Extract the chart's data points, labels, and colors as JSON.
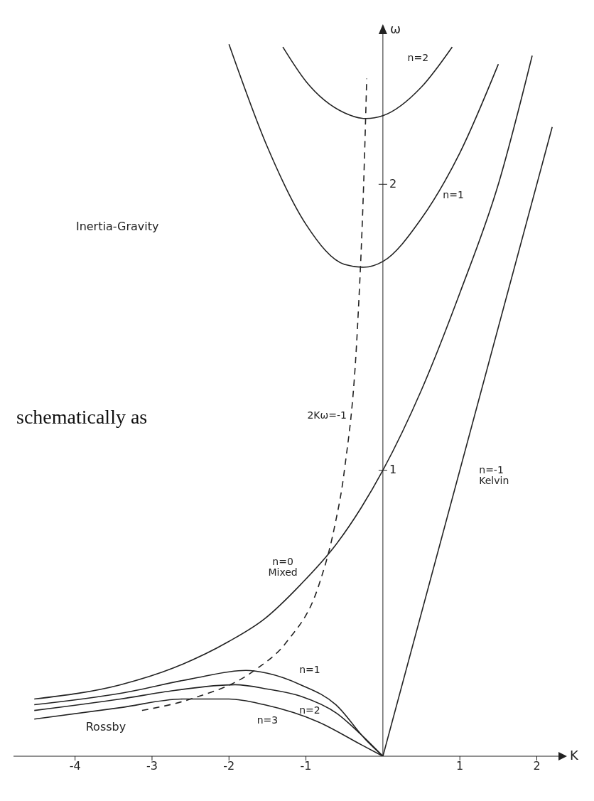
{
  "chart_data": {
    "type": "line",
    "xlabel": "K",
    "ylabel": "ω",
    "xlim": [
      -4.8,
      2.3
    ],
    "xticks": [
      -4,
      -3,
      -2,
      -1,
      1,
      2
    ],
    "ylim": [
      0,
      2.55
    ],
    "yticks": [
      1,
      2
    ],
    "grid": false,
    "marker": "none",
    "line_style": "solid",
    "series": [
      {
        "name": "n=2",
        "color": "#222222",
        "x": [
          -1.3,
          -1,
          -0.5,
          -0.22,
          0,
          0.5,
          0.9
        ],
        "values": [
          2.48,
          2.36,
          2.25,
          2.23,
          2.24,
          2.34,
          2.48
        ]
      },
      {
        "name": "n=1",
        "color": "#222222",
        "x": [
          -2,
          -1.5,
          -1,
          -0.5,
          -0.25,
          0,
          0.5,
          1,
          1.5
        ],
        "values": [
          2.49,
          2.13,
          1.86,
          1.72,
          1.71,
          1.73,
          1.88,
          2.11,
          2.42
        ]
      },
      {
        "name": "n=0 Mixed",
        "color": "#222222",
        "x": [
          -4.53,
          -3.41,
          -2.71,
          -2.01,
          -1.54,
          -1.07,
          -0.61,
          -0.28,
          0,
          0.5,
          1,
          1.5,
          1.94
        ],
        "values": [
          0.2,
          0.25,
          0.31,
          0.4,
          0.48,
          0.6,
          0.74,
          0.87,
          1,
          1.28,
          1.62,
          2,
          2.45
        ]
      },
      {
        "name": "n=-1 Kelvin",
        "color": "#222222",
        "x": [
          0,
          2.2
        ],
        "values": [
          0,
          2.2
        ]
      },
      {
        "name": "n=1",
        "color": "#222222",
        "x": [
          -4.53,
          -3.41,
          -2.5,
          -1.78,
          -1.5,
          -1.07,
          -0.61,
          -0.23,
          0
        ],
        "values": [
          0.18,
          0.22,
          0.27,
          0.3,
          0.29,
          0.25,
          0.18,
          0.06,
          0
        ]
      },
      {
        "name": "n=2",
        "color": "#222222",
        "x": [
          -4.53,
          -3.41,
          -2.71,
          -1.92,
          -1.5,
          -1.07,
          -0.6,
          -0.3,
          0
        ],
        "values": [
          0.16,
          0.2,
          0.23,
          0.25,
          0.235,
          0.21,
          0.15,
          0.08,
          0
        ]
      },
      {
        "name": "n=3",
        "color": "#222222",
        "x": [
          -4.53,
          -3.41,
          -2.6,
          -2,
          -1.54,
          -0.84,
          -0.28,
          0
        ],
        "values": [
          0.13,
          0.17,
          0.2,
          0.2,
          0.18,
          0.12,
          0.04,
          0
        ]
      },
      {
        "name": "2Kω=-1",
        "color": "#222222",
        "line_style": "dashed",
        "x": [
          -3.13,
          -2.5,
          -1.67,
          -1.25,
          -0.83,
          -0.63,
          -0.5,
          -0.33,
          -0.25,
          -0.21
        ],
        "values": [
          0.16,
          0.2,
          0.3,
          0.4,
          0.6,
          0.8,
          1,
          1.5,
          2,
          2.37
        ]
      }
    ],
    "annotations": [
      "Inertia-Gravity",
      "Rossby",
      "schematically as"
    ]
  }
}
